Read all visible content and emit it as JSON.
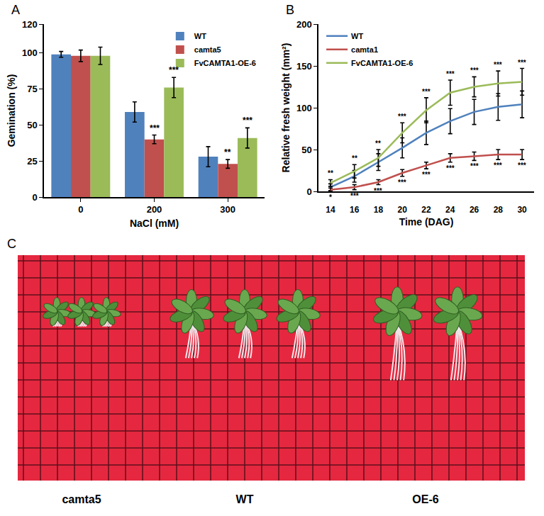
{
  "chart_data": [
    {
      "panel": "A",
      "type": "bar",
      "categories": [
        "0",
        "200",
        "300"
      ],
      "x_label": "NaCl (mM)",
      "y_label": "Gemination (%)",
      "ylim": [
        0,
        120
      ],
      "yticks": [
        0,
        25,
        50,
        75,
        100,
        120
      ],
      "legend": "top right",
      "series": [
        {
          "name": "WT",
          "color": "#4F81BD",
          "values": [
            99,
            59,
            28
          ],
          "errors": [
            2,
            7,
            7
          ]
        },
        {
          "name": "camta5",
          "color": "#C0504D",
          "values": [
            98,
            40,
            23
          ],
          "errors": [
            4,
            3,
            3
          ],
          "significance": [
            null,
            "***",
            "**"
          ]
        },
        {
          "name": "FvCAMTA1-OE-6",
          "color": "#9BBB59",
          "values": [
            98,
            76,
            41
          ],
          "errors": [
            6,
            7,
            7
          ],
          "significance": [
            null,
            "***",
            "***"
          ]
        }
      ]
    },
    {
      "panel": "B",
      "type": "line",
      "x": [
        14,
        16,
        18,
        20,
        22,
        24,
        26,
        28,
        30
      ],
      "x_label": "Time (DAG)",
      "y_label": "Relative fresh weight (mm²)",
      "xlim": [
        13,
        31
      ],
      "xticks": [
        14,
        16,
        18,
        20,
        22,
        24,
        26,
        28,
        30
      ],
      "ylim": [
        0,
        200
      ],
      "yticks": [
        0,
        50,
        100,
        150,
        200
      ],
      "legend": "top left",
      "series": [
        {
          "name": "WT",
          "color": "#4F81BD",
          "values": [
            5,
            18,
            35,
            52,
            70,
            84,
            95,
            101,
            104
          ],
          "errors": [
            4,
            7,
            10,
            12,
            14,
            15,
            15,
            16,
            16
          ]
        },
        {
          "name": "camta1",
          "color": "#C0504D",
          "values": [
            2,
            5,
            11,
            22,
            31,
            40,
            42,
            44,
            44
          ],
          "errors": [
            2,
            3,
            3,
            4,
            4,
            5,
            5,
            6,
            6
          ],
          "significance": [
            "*",
            "***",
            "***",
            "***",
            "***",
            "***",
            "***",
            "***",
            "***"
          ]
        },
        {
          "name": "FvCAMTA1-OE-6",
          "color": "#9BBB59",
          "values": [
            10,
            24,
            40,
            70,
            97,
            118,
            125,
            129,
            131
          ],
          "errors": [
            4,
            8,
            10,
            12,
            15,
            15,
            12,
            15,
            16
          ],
          "significance": [
            "**",
            "**",
            "**",
            "***",
            "***",
            "***",
            "***",
            "***",
            "***"
          ]
        }
      ]
    }
  ],
  "photo": {
    "panel": "C",
    "labels": [
      "camta5",
      "WT",
      "OE-6"
    ]
  }
}
